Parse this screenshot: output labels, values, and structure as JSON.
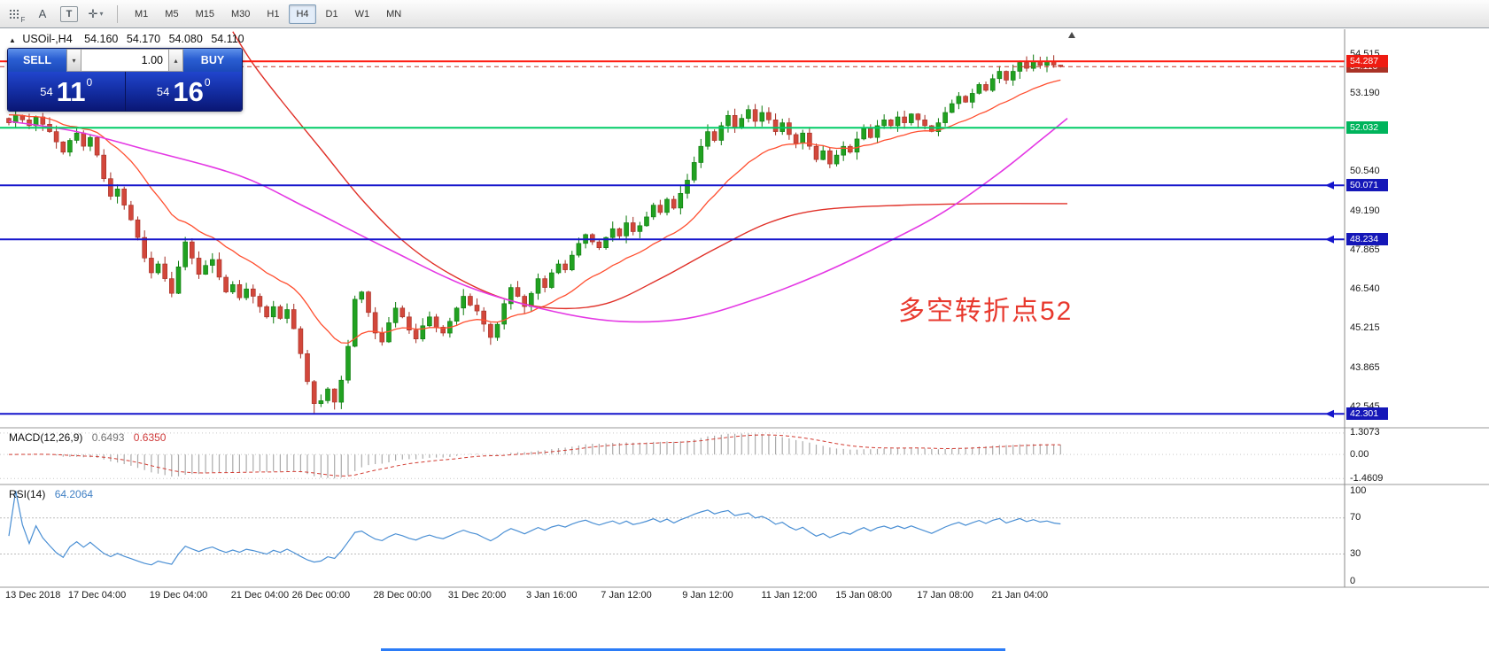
{
  "toolbar": {
    "grid_sub": "F",
    "tool_a": "A",
    "tool_t": "T",
    "crosshair_glyph": "✛",
    "caret_glyph": "▾",
    "timeframes": [
      "M1",
      "M5",
      "M15",
      "M30",
      "H1",
      "H4",
      "D1",
      "W1",
      "MN"
    ],
    "active_timeframe": "H4"
  },
  "chart_header": {
    "arrow": "▲",
    "symbol": "USOil-,H4",
    "open": "54.160",
    "high": "54.170",
    "low": "54.080",
    "close": "54.110"
  },
  "trade_panel": {
    "sell_label": "SELL",
    "buy_label": "BUY",
    "volume": "1.00",
    "spin_up": "▴",
    "spin_down": "▾",
    "sell_price": {
      "head": "54",
      "big": "11",
      "sup": "0"
    },
    "buy_price": {
      "head": "54",
      "big": "16",
      "sup": "0"
    }
  },
  "annotation": {
    "text": "多空转折点52",
    "color": "#e8392e"
  },
  "indicators": {
    "macd": {
      "label": "MACD(12,26,9)",
      "value_main": "0.6493",
      "value_signal": "0.6350",
      "scale": [
        1.3073,
        0.0,
        -1.4609
      ],
      "scale_text": [
        "1.3073",
        "0.00",
        "-1.4609"
      ]
    },
    "rsi": {
      "label": "RSI(14)",
      "value": "64.2064",
      "scale": [
        100,
        70,
        30,
        0
      ],
      "scale_text": [
        "100",
        "70",
        "30",
        "0"
      ]
    }
  },
  "price_scale": {
    "labels": [
      "54.515",
      "53.190",
      "50.540",
      "49.190",
      "47.865",
      "46.540",
      "45.215",
      "43.865",
      "42.545"
    ]
  },
  "time_axis": {
    "labels": [
      {
        "t": "13 Dec 2018",
        "i": 0
      },
      {
        "t": "17 Dec 04:00",
        "i": 13
      },
      {
        "t": "19 Dec 04:00",
        "i": 25
      },
      {
        "t": "21 Dec 04:00",
        "i": 37
      },
      {
        "t": "26 Dec 00:00",
        "i": 46
      },
      {
        "t": "28 Dec 00:00",
        "i": 58
      },
      {
        "t": "31 Dec 20:00",
        "i": 69
      },
      {
        "t": "3 Jan 16:00",
        "i": 80
      },
      {
        "t": "7 Jan 12:00",
        "i": 91
      },
      {
        "t": "9 Jan 12:00",
        "i": 103
      },
      {
        "t": "11 Jan 12:00",
        "i": 115
      },
      {
        "t": "15 Jan 08:00",
        "i": 126
      },
      {
        "t": "17 Jan 08:00",
        "i": 138
      },
      {
        "t": "21 Jan 04:00",
        "i": 149
      }
    ]
  },
  "chart_data": {
    "type": "candlestick",
    "symbol": "USOil-",
    "timeframe": "H4",
    "ylim": [
      41.95,
      55.32
    ],
    "open_first": 52.35,
    "closes": [
      52.2,
      52.45,
      52.3,
      52.1,
      52.4,
      52.15,
      51.9,
      51.55,
      51.2,
      51.6,
      51.85,
      51.4,
      51.7,
      51.1,
      50.3,
      49.7,
      49.95,
      49.4,
      48.9,
      48.3,
      47.6,
      47.1,
      47.4,
      46.9,
      46.4,
      47.3,
      48.15,
      47.6,
      47.05,
      47.35,
      47.55,
      46.95,
      46.45,
      46.7,
      46.25,
      46.55,
      46.3,
      45.95,
      45.6,
      45.95,
      45.55,
      45.85,
      45.2,
      44.35,
      43.4,
      42.65,
      42.75,
      43.15,
      42.7,
      43.45,
      44.6,
      46.2,
      46.45,
      45.75,
      45.05,
      44.75,
      45.4,
      45.9,
      45.6,
      45.15,
      44.85,
      45.3,
      45.6,
      45.25,
      45.05,
      45.45,
      45.9,
      46.3,
      46.0,
      45.8,
      45.35,
      44.9,
      45.35,
      46.05,
      46.6,
      46.3,
      45.95,
      46.4,
      46.9,
      46.6,
      47.1,
      47.4,
      47.2,
      47.7,
      48.1,
      48.4,
      48.15,
      47.95,
      48.3,
      48.6,
      48.35,
      48.8,
      48.5,
      48.7,
      49.0,
      49.4,
      49.15,
      49.6,
      49.3,
      49.8,
      50.25,
      50.85,
      51.4,
      51.9,
      51.6,
      52.1,
      52.45,
      52.05,
      52.35,
      52.65,
      52.25,
      52.55,
      52.3,
      51.9,
      52.2,
      51.8,
      51.5,
      51.85,
      51.4,
      50.95,
      51.25,
      50.8,
      51.1,
      51.4,
      51.2,
      51.65,
      52.0,
      51.7,
      52.1,
      52.3,
      52.1,
      52.4,
      52.2,
      52.5,
      52.3,
      52.1,
      51.9,
      52.2,
      52.55,
      52.85,
      53.1,
      52.9,
      53.2,
      53.5,
      53.3,
      53.7,
      53.95,
      53.65,
      53.95,
      54.25,
      54.05,
      54.3,
      54.15,
      54.28,
      54.16,
      54.11
    ],
    "wick_high_overrides": {
      "26": 48.32,
      "151": 54.52,
      "155": 54.17
    },
    "wick_low_overrides": {
      "45": 42.31,
      "48": 42.45,
      "155": 54.08
    },
    "up_color": "#21a121",
    "up_border": "#0d7a0d",
    "down_color": "#d2473b",
    "down_border": "#a32e24",
    "hlines": [
      {
        "price": 54.11,
        "color": "#c0392b",
        "style": "dashed",
        "width": 1,
        "badge": "54.110",
        "badge_color": "#a93226"
      },
      {
        "price": 54.287,
        "color": "#ff1d12",
        "style": "solid",
        "width": 2,
        "badge": "54.287",
        "badge_color": "#ee1c12"
      },
      {
        "price": 52.032,
        "color": "#00cc66",
        "style": "solid",
        "width": 2,
        "badge": "52.032",
        "badge_color": "#00b45c"
      },
      {
        "price": 50.071,
        "color": "#1515cc",
        "style": "solid",
        "width": 2,
        "badge": "50.071",
        "badge_color": "#1517b8",
        "arrow": true
      },
      {
        "price": 48.234,
        "color": "#1515cc",
        "style": "solid",
        "width": 2,
        "badge": "48.234",
        "badge_color": "#1517b8",
        "arrow": true
      },
      {
        "price": 42.301,
        "color": "#1515cc",
        "style": "solid",
        "width": 2,
        "badge": "42.301",
        "badge_color": "#1517b8",
        "arrow": true
      }
    ],
    "ma_fast": {
      "type": "ema",
      "period": 18,
      "seed": 52.5,
      "color": "#ff4f30"
    },
    "ma_paths": [
      {
        "name": "ma-long-red",
        "color": "#e03028",
        "width": 1.4,
        "points": [
          [
            33,
            55.3
          ],
          [
            36,
            54.2
          ],
          [
            40,
            53.0
          ],
          [
            46,
            51.3
          ],
          [
            52,
            49.6
          ],
          [
            58,
            48.2
          ],
          [
            64,
            47.2
          ],
          [
            72,
            46.3
          ],
          [
            80,
            45.9
          ],
          [
            88,
            46.05
          ],
          [
            96,
            46.9
          ],
          [
            104,
            47.9
          ],
          [
            112,
            48.8
          ],
          [
            120,
            49.25
          ],
          [
            132,
            49.4
          ],
          [
            144,
            49.45
          ],
          [
            156,
            49.45
          ]
        ]
      },
      {
        "name": "ma-mid-magenta",
        "color": "#e438e4",
        "width": 1.6,
        "points": [
          [
            0,
            52.25
          ],
          [
            10,
            51.9
          ],
          [
            20,
            51.3
          ],
          [
            34,
            50.4
          ],
          [
            44,
            49.3
          ],
          [
            56,
            47.9
          ],
          [
            68,
            46.6
          ],
          [
            80,
            45.8
          ],
          [
            90,
            45.45
          ],
          [
            100,
            45.55
          ],
          [
            110,
            46.2
          ],
          [
            120,
            47.1
          ],
          [
            130,
            48.2
          ],
          [
            138,
            49.2
          ],
          [
            146,
            50.5
          ],
          [
            152,
            51.6
          ],
          [
            156,
            52.35
          ]
        ]
      }
    ],
    "macd": {
      "fast": 12,
      "slow": 26,
      "signal": 9,
      "range": [
        -1.72,
        1.52
      ],
      "hist_color": "#ababab",
      "signal_color": "#d23c32"
    },
    "rsi": {
      "period": 14,
      "color": "#4a8fd4",
      "levels": [
        70,
        30
      ]
    }
  }
}
